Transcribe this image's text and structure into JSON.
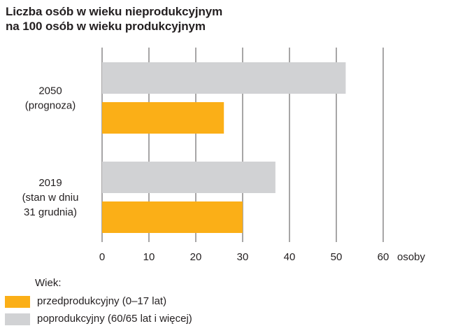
{
  "title_line1": "Liczba osób w wieku nieprodukcyjnym",
  "title_line2": "na 100 osób w wieku produkcyjnym",
  "colors": {
    "pre": "#fbaf17",
    "post": "#d1d2d4",
    "grid": "#231f20"
  },
  "chart_data": {
    "type": "bar",
    "orientation": "horizontal",
    "title": "Liczba osób w wieku nieprodukcyjnym na 100 osób w wieku produkcyjnym",
    "categories": [
      {
        "lines": [
          "2050",
          "(prognoza)"
        ]
      },
      {
        "lines": [
          "2019",
          "(stan w dniu",
          "31 grudnia)"
        ]
      }
    ],
    "series": [
      {
        "name": "poprodukcyjny (60/65 lat i więcej)",
        "values": [
          52,
          37
        ]
      },
      {
        "name": "przedprodukcyjny (0–17 lat)",
        "values": [
          26,
          30
        ]
      }
    ],
    "xlim": [
      0,
      60
    ],
    "xticks": [
      "0",
      "10",
      "20",
      "30",
      "40",
      "50",
      "60"
    ],
    "xlabel": "osoby",
    "grid": "vertical",
    "legend_title": "Wiek:",
    "legend_placement": "bottom-left"
  }
}
